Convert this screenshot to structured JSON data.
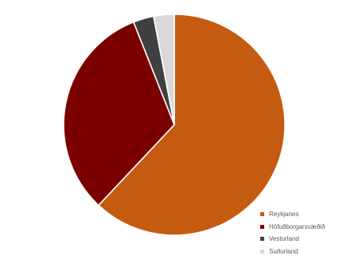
{
  "chart_data": {
    "type": "pie",
    "title": "",
    "categories": [
      "Reykjanes",
      "Höfuðborgarsvæðið",
      "Vesturland",
      "Suðurland"
    ],
    "values": [
      62,
      32,
      3,
      3
    ],
    "colors": [
      "#C55A11",
      "#7B0000",
      "#404040",
      "#D9D9D9"
    ],
    "start_angle_deg": 0,
    "direction": "clockwise",
    "slice_border": "#ffffff",
    "legend_position": "bottom-right"
  }
}
